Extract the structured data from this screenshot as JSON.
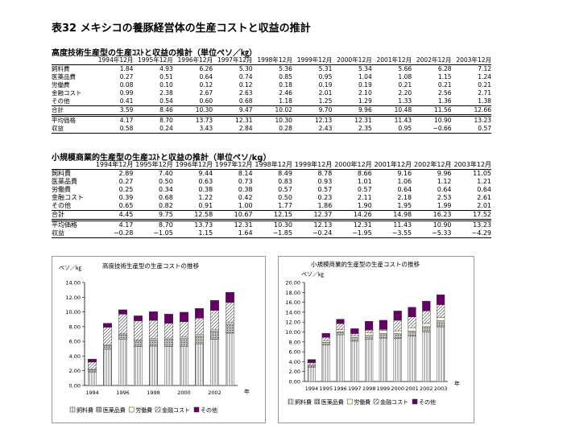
{
  "title": "表32 メキシコの養豚経営体の生産コストと収益の推計",
  "table1": {
    "caption": "高度技術生産型の生産ｺｽﾄと収益の推計（単位ペソ／㎏）",
    "headers": [
      "1994年12月",
      "1995年12月",
      "1996年12月",
      "1997年12月",
      "1998年12月",
      "1999年12月",
      "2000年12月",
      "2001年12月",
      "2002年12月",
      "2003年12月"
    ],
    "rows": [
      {
        "label": "飼料費",
        "values": [
          "1.84",
          "4.93",
          "6.26",
          "5.30",
          "5.36",
          "5.31",
          "5.34",
          "5.66",
          "6.28",
          "7.12"
        ]
      },
      {
        "label": "医薬品費",
        "values": [
          "0.27",
          "0.51",
          "0.64",
          "0.74",
          "0.85",
          "0.95",
          "1.04",
          "1.08",
          "1.15",
          "1.24"
        ]
      },
      {
        "label": "労働費",
        "values": [
          "0.08",
          "0.10",
          "0.12",
          "0.12",
          "0.18",
          "0.19",
          "0.19",
          "0.21",
          "0.21",
          "0.21"
        ]
      },
      {
        "label": "金融コスト",
        "values": [
          "0.99",
          "2.38",
          "2.67",
          "2.63",
          "2.46",
          "2.01",
          "2.10",
          "2.20",
          "2.56",
          "2.71"
        ]
      },
      {
        "label": "その他",
        "values": [
          "0.41",
          "0.54",
          "0.60",
          "0.68",
          "1.18",
          "1.25",
          "1.29",
          "1.33",
          "1.36",
          "1.38"
        ]
      },
      {
        "label": "合計",
        "values": [
          "3.59",
          "8.46",
          "10.30",
          "9.47",
          "10.02",
          "9.70",
          "9.96",
          "10.48",
          "11.56",
          "12.66"
        ]
      },
      {
        "label": "平均価格",
        "values": [
          "4.17",
          "8.70",
          "13.73",
          "12.31",
          "10.30",
          "12.13",
          "12.31",
          "11.43",
          "10.90",
          "13.23"
        ]
      },
      {
        "label": "収益",
        "values": [
          "0.58",
          "0.24",
          "3.43",
          "2.84",
          "0.28",
          "2.43",
          "2.35",
          "0.95",
          "−0.66",
          "0.57"
        ]
      }
    ]
  },
  "table2": {
    "caption": "小規模商業的生産型の生産ｺｽﾄと収益の推計（単位ペソ/kg）",
    "headers": [
      "1994年12月",
      "1995年12月",
      "1996年12月",
      "1997年12月",
      "1998年12月",
      "1999年12月",
      "2000年12月",
      "2001年12月",
      "2002年12月",
      "2003年12月"
    ],
    "rows": [
      {
        "label": "飼料費",
        "values": [
          "2.89",
          "7.40",
          "9.44",
          "8.14",
          "8.49",
          "8.78",
          "8.66",
          "9.16",
          "9.96",
          "11.05"
        ]
      },
      {
        "label": "医薬品費",
        "values": [
          "0.27",
          "0.50",
          "0.63",
          "0.73",
          "0.83",
          "0.93",
          "1.01",
          "1.06",
          "1.12",
          "1.21"
        ]
      },
      {
        "label": "労働費",
        "values": [
          "0.25",
          "0.34",
          "0.38",
          "0.38",
          "0.57",
          "0.57",
          "0.57",
          "0.64",
          "0.64",
          "0.64"
        ]
      },
      {
        "label": "金融コスト",
        "values": [
          "0.39",
          "0.68",
          "1.22",
          "0.42",
          "0.50",
          "0.23",
          "2.11",
          "2.18",
          "2.53",
          "2.61"
        ]
      },
      {
        "label": "その他",
        "values": [
          "0.65",
          "0.82",
          "0.91",
          "1.00",
          "1.77",
          "1.86",
          "1.90",
          "1.95",
          "1.99",
          "2.01"
        ]
      },
      {
        "label": "合計",
        "values": [
          "4.45",
          "9.75",
          "12.58",
          "10.67",
          "12.15",
          "12.37",
          "14.26",
          "14.98",
          "16.23",
          "17.52"
        ]
      },
      {
        "label": "平均価格",
        "values": [
          "4.17",
          "8.70",
          "13.73",
          "12.31",
          "10.30",
          "12.13",
          "12.31",
          "11.43",
          "10.90",
          "13.23"
        ]
      },
      {
        "label": "収益",
        "values": [
          "−0.28",
          "−1.05",
          "1.15",
          "1.64",
          "−1.85",
          "−0.24",
          "−1.95",
          "−3.55",
          "−5.33",
          "−4.29"
        ]
      }
    ]
  },
  "chart_data": [
    {
      "type": "bar",
      "stacked": true,
      "title": "高度技術生産型の生産コストの推移",
      "ylabel": "ペソ／㎏",
      "xlabel": "年",
      "ylim": [
        0,
        14
      ],
      "yticks": [
        "0.00",
        "2.00",
        "4.00",
        "6.00",
        "8.00",
        "10.00",
        "12.00",
        "14.00"
      ],
      "categories": [
        "1994",
        "1995",
        "1996",
        "1997",
        "1998",
        "1999",
        "2000",
        "2001",
        "2002",
        "2003"
      ],
      "xtick_labels": [
        "1994",
        "1996",
        "1998",
        "2000",
        "2002"
      ],
      "legend_position": "bottom",
      "series": [
        {
          "name": "飼料費",
          "color": "#ffffff",
          "pattern": "vertical",
          "values": [
            1.84,
            4.93,
            6.26,
            5.3,
            5.36,
            5.31,
            5.34,
            5.66,
            6.28,
            7.12
          ]
        },
        {
          "name": "医薬品費",
          "color": "#a0a0a0",
          "pattern": "dots",
          "values": [
            0.27,
            0.51,
            0.64,
            0.74,
            0.85,
            0.95,
            1.04,
            1.08,
            1.15,
            1.24
          ]
        },
        {
          "name": "労働費",
          "color": "#fffbe0",
          "pattern": "none",
          "values": [
            0.08,
            0.1,
            0.12,
            0.12,
            0.18,
            0.19,
            0.19,
            0.21,
            0.21,
            0.21
          ]
        },
        {
          "name": "金融コスト",
          "color": "#ffffff",
          "pattern": "diagonal",
          "values": [
            0.99,
            2.38,
            2.67,
            2.63,
            2.46,
            2.01,
            2.1,
            2.2,
            2.56,
            2.71
          ]
        },
        {
          "name": "その他",
          "color": "#660066",
          "pattern": "none",
          "values": [
            0.41,
            0.54,
            0.6,
            0.68,
            1.18,
            1.25,
            1.29,
            1.33,
            1.36,
            1.38
          ]
        }
      ]
    },
    {
      "type": "bar",
      "stacked": true,
      "title": "小規模商業的生産型の生産コストの推移",
      "ylabel": "ペソ／㎏",
      "xlabel": "年",
      "ylim": [
        0,
        20
      ],
      "yticks": [
        "0.00",
        "2.00",
        "4.00",
        "6.00",
        "8.00",
        "10.00",
        "12.00",
        "14.00",
        "16.00",
        "18.00",
        "20.00"
      ],
      "categories": [
        "1994",
        "1995",
        "1996",
        "1997",
        "1998",
        "1999",
        "2000",
        "2001",
        "2002",
        "2003"
      ],
      "xtick_labels": [
        "1994",
        "1995",
        "1996",
        "1997",
        "1998",
        "1999",
        "2000",
        "2001",
        "2002",
        "2003"
      ],
      "legend_position": "bottom",
      "series": [
        {
          "name": "飼料費",
          "color": "#ffffff",
          "pattern": "vertical",
          "values": [
            2.89,
            7.4,
            9.44,
            8.14,
            8.49,
            8.78,
            8.66,
            9.16,
            9.96,
            11.05
          ]
        },
        {
          "name": "医薬品費",
          "color": "#a0a0a0",
          "pattern": "dots",
          "values": [
            0.27,
            0.5,
            0.63,
            0.73,
            0.83,
            0.93,
            1.01,
            1.06,
            1.12,
            1.21
          ]
        },
        {
          "name": "労働費",
          "color": "#fffbe0",
          "pattern": "none",
          "values": [
            0.25,
            0.34,
            0.38,
            0.38,
            0.57,
            0.57,
            0.57,
            0.64,
            0.64,
            0.64
          ]
        },
        {
          "name": "金融コスト",
          "color": "#ffffff",
          "pattern": "diagonal",
          "values": [
            0.39,
            0.68,
            1.22,
            0.42,
            0.5,
            0.23,
            2.11,
            2.18,
            2.53,
            2.61
          ]
        },
        {
          "name": "その他",
          "color": "#660066",
          "pattern": "none",
          "values": [
            0.65,
            0.82,
            0.91,
            1.0,
            1.77,
            1.86,
            1.9,
            1.95,
            1.99,
            2.01
          ]
        }
      ]
    }
  ]
}
